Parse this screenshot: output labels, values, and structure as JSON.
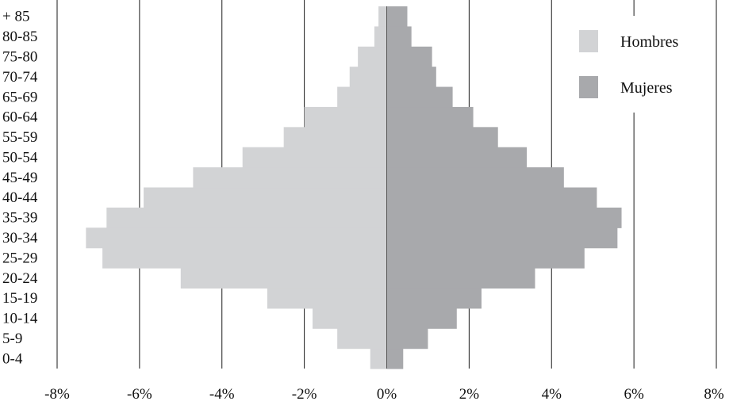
{
  "chart_data": {
    "type": "bar",
    "orientation": "horizontal-pyramid",
    "title": "",
    "xlabel": "",
    "ylabel": "",
    "categories": [
      "0-4",
      "5-9",
      "10-14",
      "15-19",
      "20-24",
      "25-29",
      "30-34",
      "35-39",
      "40-44",
      "45-49",
      "50-54",
      "55-59",
      "60-64",
      "65-69",
      "70-74",
      "75-80",
      "80-85",
      "+ 85"
    ],
    "series": [
      {
        "name": "Hombres",
        "color": "#d2d3d5",
        "values": [
          -0.4,
          -1.2,
          -1.8,
          -2.9,
          -5.0,
          -6.9,
          -7.3,
          -6.8,
          -5.9,
          -4.7,
          -3.5,
          -2.5,
          -2.0,
          -1.2,
          -0.9,
          -0.7,
          -0.3,
          -0.2
        ]
      },
      {
        "name": "Mujeres",
        "color": "#a8a9ac",
        "values": [
          0.4,
          1.0,
          1.7,
          2.3,
          3.6,
          4.8,
          5.6,
          5.7,
          5.1,
          4.3,
          3.4,
          2.7,
          2.1,
          1.6,
          1.2,
          1.1,
          0.6,
          0.5
        ]
      }
    ],
    "xlim": [
      -8,
      8
    ],
    "xticks": [
      -8,
      -6,
      -4,
      -2,
      0,
      2,
      4,
      6,
      8
    ],
    "xtick_labels": [
      "-8%",
      "-6%",
      "-4%",
      "-2%",
      "0%",
      "2%",
      "4%",
      "6%",
      "8%"
    ],
    "grid": "vertical lines",
    "legend_position": "top-right"
  }
}
